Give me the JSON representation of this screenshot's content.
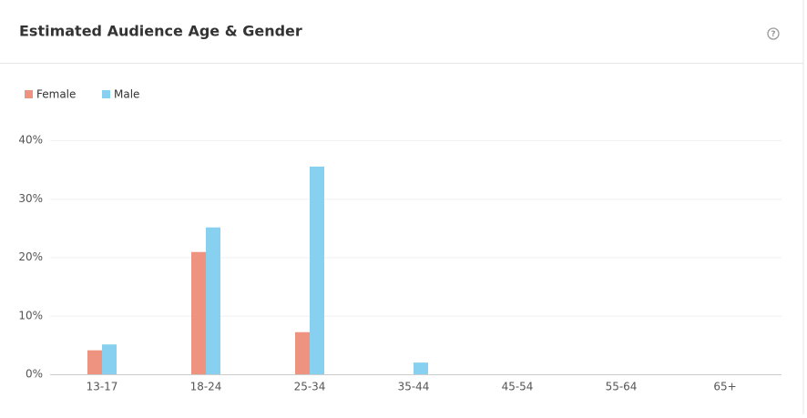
{
  "chart_data": {
    "type": "bar",
    "title": "Estimated Audience Age & Gender",
    "categories": [
      "13-17",
      "18-24",
      "25-34",
      "35-44",
      "45-54",
      "55-64",
      "65+"
    ],
    "series": [
      {
        "name": "Female",
        "color": "#ee937f",
        "values": [
          4.1,
          20.9,
          7.2,
          0,
          0,
          0,
          0
        ]
      },
      {
        "name": "Male",
        "color": "#87d0ef",
        "values": [
          5.1,
          25.1,
          35.5,
          2.0,
          0,
          0,
          0
        ]
      }
    ],
    "ylim": [
      0,
      40
    ],
    "yticks": [
      {
        "value": 0,
        "label": "0%"
      },
      {
        "value": 10,
        "label": "10%"
      },
      {
        "value": 20,
        "label": "20%"
      },
      {
        "value": 30,
        "label": "30%"
      },
      {
        "value": 40,
        "label": "40%"
      }
    ],
    "grid": true
  }
}
